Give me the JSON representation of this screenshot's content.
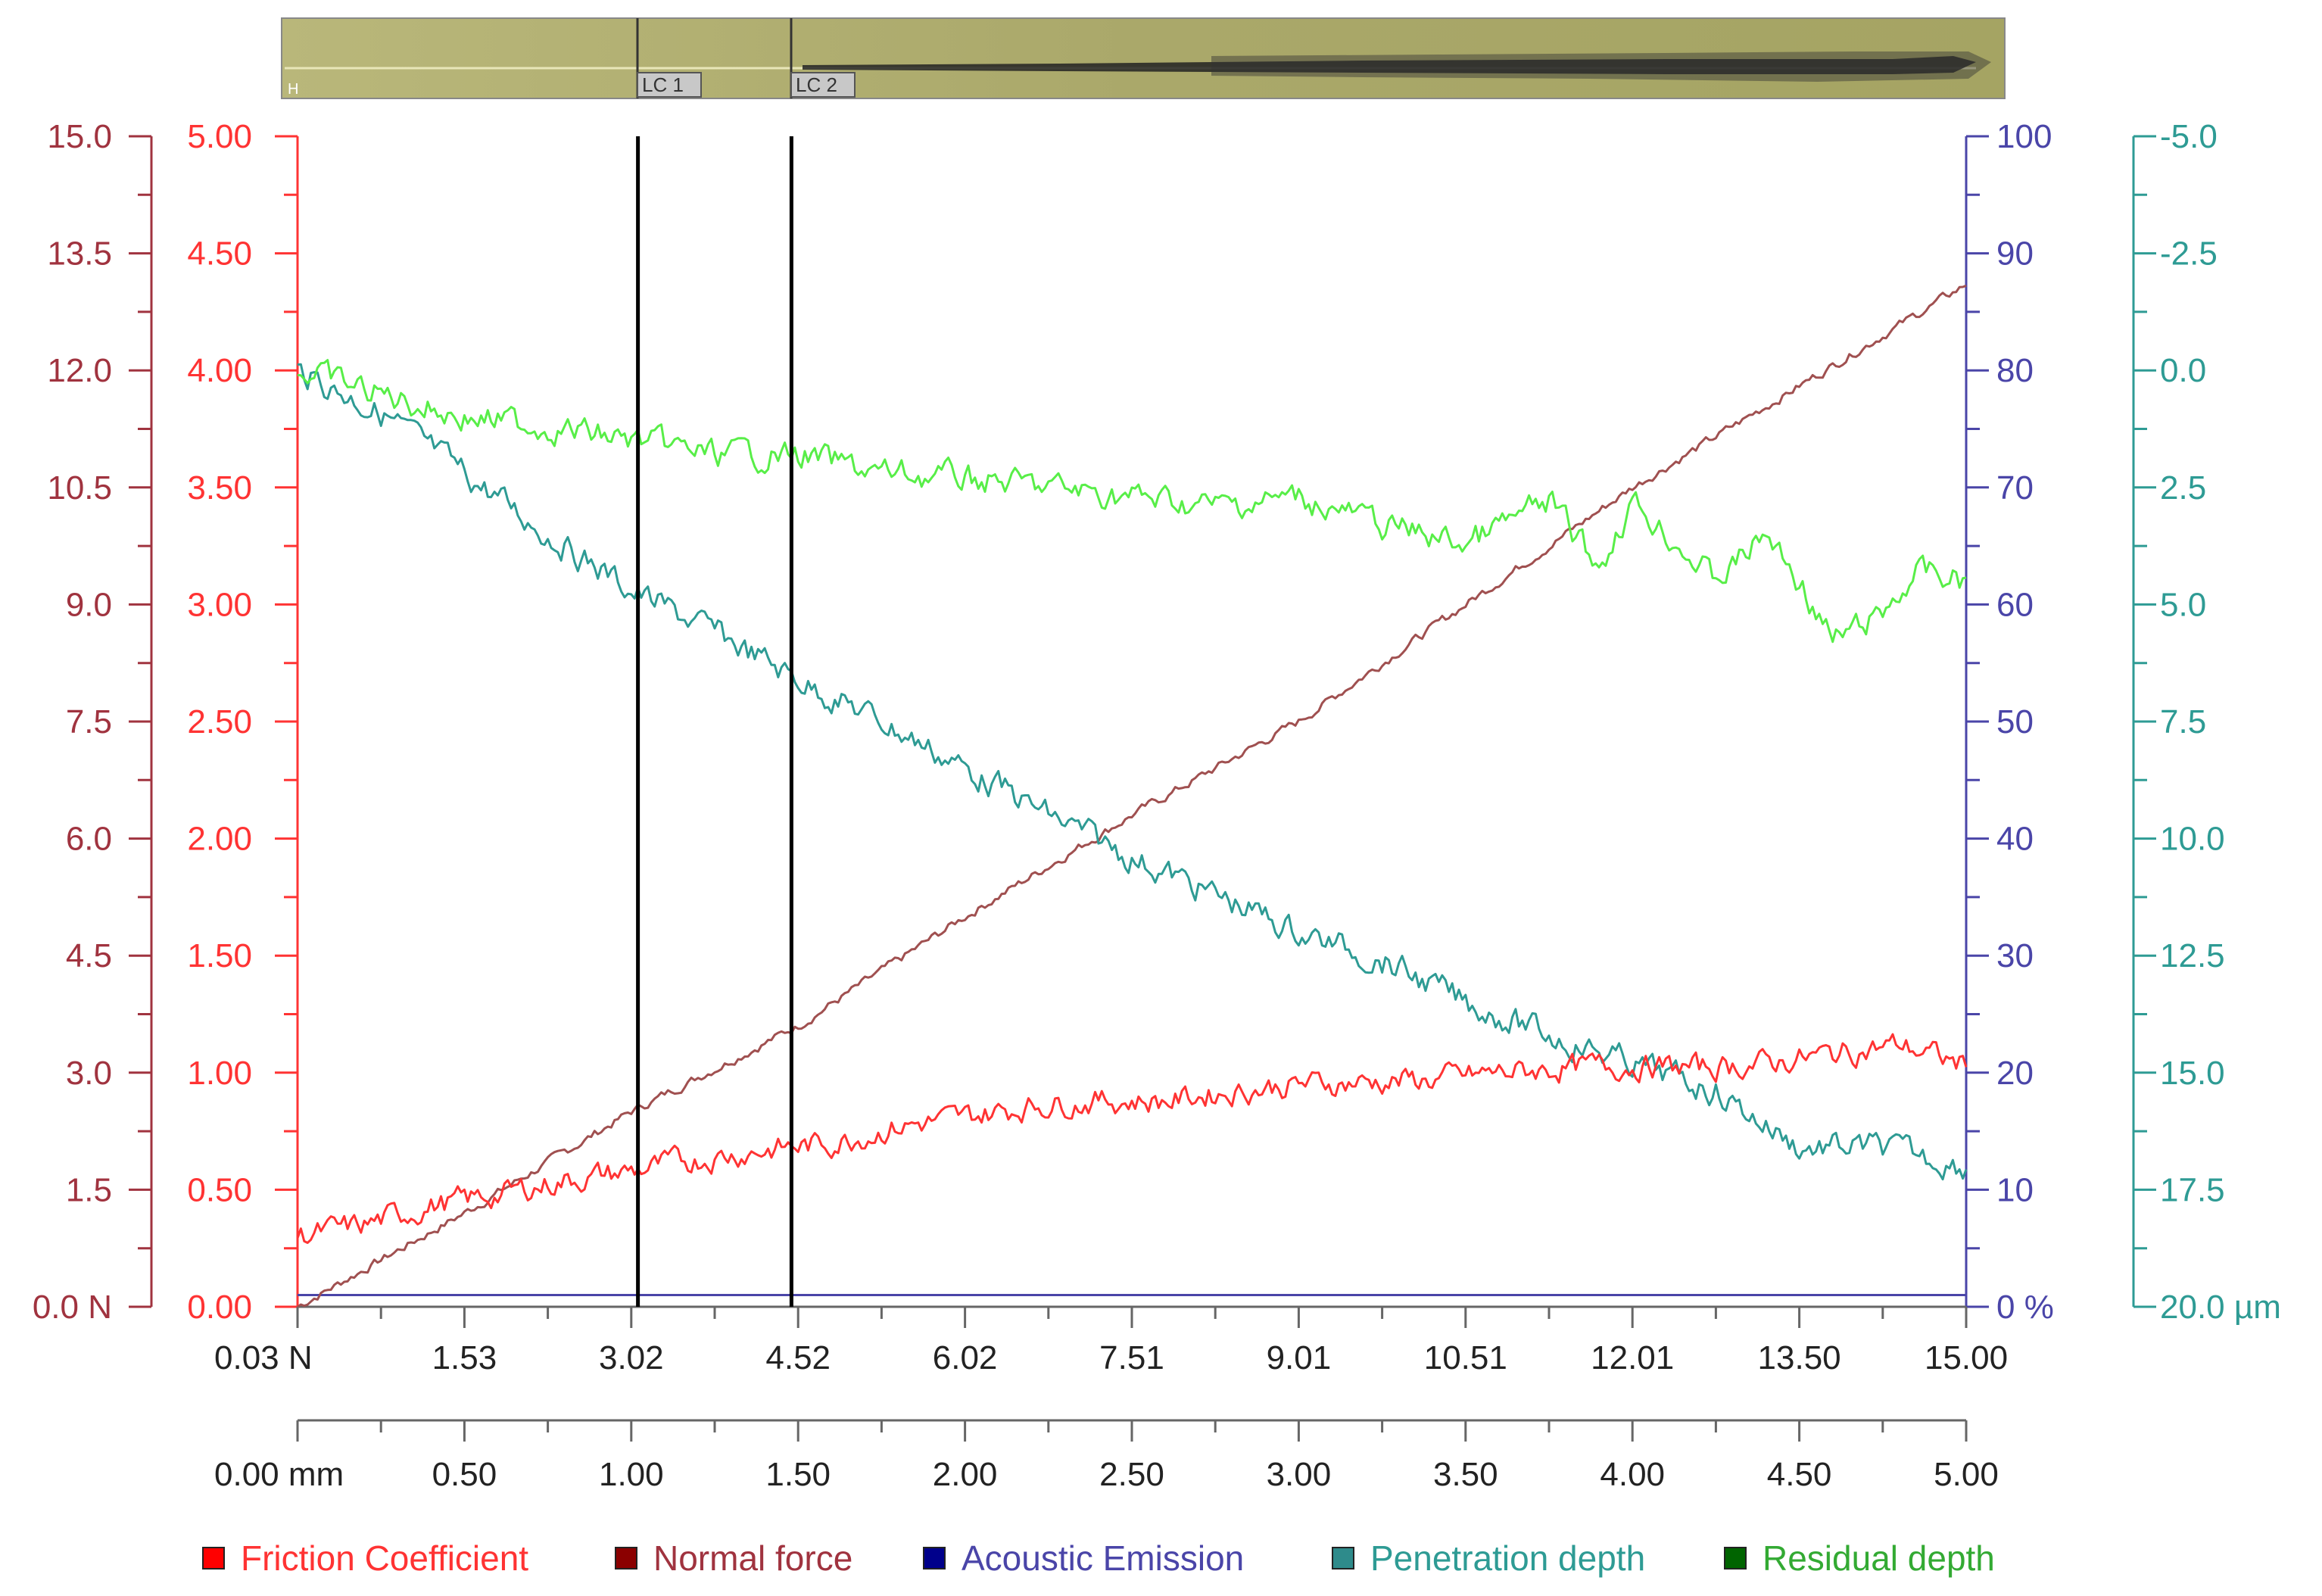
{
  "chart_data": {
    "type": "line",
    "title": "",
    "scratch_image": {
      "markers": [
        "LC 1",
        "LC 2"
      ],
      "scale_marker": "H"
    },
    "x_axis_force": {
      "ticks": [
        "0.03 N",
        "1.53",
        "3.02",
        "4.52",
        "6.02",
        "7.51",
        "9.01",
        "10.51",
        "12.01",
        "13.50",
        "15.00"
      ],
      "range": [
        0.03,
        15.0
      ]
    },
    "x_axis_position": {
      "ticks": [
        "0.00 mm",
        "0.50",
        "1.00",
        "1.50",
        "2.00",
        "2.50",
        "3.00",
        "3.50",
        "4.00",
        "4.50",
        "5.00"
      ],
      "range": [
        0.0,
        5.0
      ]
    },
    "y_axes": {
      "normal_force": {
        "ticks": [
          "0.0 N",
          "1.5",
          "3.0",
          "4.5",
          "6.0",
          "7.5",
          "9.0",
          "10.5",
          "12.0",
          "13.5",
          "15.0"
        ],
        "range": [
          0,
          15
        ],
        "color": "#a0333f"
      },
      "friction": {
        "ticks": [
          "0.00",
          "0.50",
          "1.00",
          "1.50",
          "2.00",
          "2.50",
          "3.00",
          "3.50",
          "4.00",
          "4.50",
          "5.00"
        ],
        "range": [
          0,
          5
        ],
        "color": "#ff3333"
      },
      "acoustic": {
        "ticks": [
          "0 %",
          "10",
          "20",
          "30",
          "40",
          "50",
          "60",
          "70",
          "80",
          "90",
          "100"
        ],
        "range": [
          0,
          100
        ],
        "color": "#4a45a8"
      },
      "depth": {
        "ticks": [
          "-5.0",
          "-2.5",
          "0.0",
          "2.5",
          "5.0",
          "7.5",
          "10.0",
          "12.5",
          "15.0",
          "17.5",
          "20.0 µm"
        ],
        "range": [
          -5,
          20
        ],
        "inverted": true,
        "color": "#2e9b94"
      }
    },
    "critical_loads": [
      {
        "label": "LC 1",
        "position_mm": 1.02
      },
      {
        "label": "LC 2",
        "position_mm": 1.48
      }
    ],
    "series": [
      {
        "name": "Friction Coefficient",
        "axis": "friction",
        "color": "#ff3333",
        "x_mm": [
          0.0,
          0.2,
          0.4,
          0.6,
          0.8,
          1.0,
          1.2,
          1.4,
          1.6,
          1.8,
          2.0,
          2.2,
          2.4,
          2.6,
          2.8,
          3.0,
          3.2,
          3.4,
          3.6,
          3.8,
          4.0,
          4.2,
          4.4,
          4.6,
          4.8,
          5.0
        ],
        "y": [
          0.3,
          0.35,
          0.43,
          0.48,
          0.54,
          0.58,
          0.63,
          0.67,
          0.7,
          0.77,
          0.81,
          0.86,
          0.88,
          0.88,
          0.92,
          0.95,
          0.96,
          0.97,
          1.0,
          1.02,
          1.03,
          1.02,
          1.04,
          1.08,
          1.12,
          1.03
        ]
      },
      {
        "name": "Normal force",
        "axis": "normal_force",
        "color": "#a05050",
        "x_mm": [
          0.0,
          0.5,
          1.0,
          1.5,
          2.0,
          2.5,
          3.0,
          3.5,
          4.0,
          4.5,
          5.0
        ],
        "y": [
          0.0,
          1.2,
          2.5,
          3.6,
          5.0,
          6.3,
          7.5,
          9.0,
          10.5,
          11.8,
          13.1
        ]
      },
      {
        "name": "Acoustic Emission",
        "axis": "acoustic",
        "color": "#4a45a8",
        "x_mm": [
          0.0,
          5.0
        ],
        "y": [
          1,
          1
        ]
      },
      {
        "name": "Penetration depth",
        "axis": "depth",
        "color": "#2e9b94",
        "x_mm": [
          0.0,
          0.25,
          0.5,
          0.75,
          1.0,
          1.25,
          1.5,
          1.75,
          2.0,
          2.25,
          2.5,
          2.75,
          3.0,
          3.25,
          3.5,
          3.75,
          4.0,
          4.25,
          4.5,
          4.75,
          5.0
        ],
        "y": [
          0.0,
          0.9,
          2.2,
          3.5,
          4.7,
          5.6,
          6.6,
          7.5,
          8.5,
          9.5,
          10.4,
          11.2,
          12.0,
          12.6,
          13.5,
          14.2,
          14.8,
          15.4,
          16.6,
          16.6,
          17.0
        ]
      },
      {
        "name": "Residual depth",
        "axis": "depth",
        "color": "#58ee48",
        "x_mm": [
          0.0,
          0.25,
          0.5,
          0.75,
          1.0,
          1.25,
          1.5,
          1.75,
          2.0,
          2.25,
          2.5,
          2.75,
          3.0,
          3.25,
          3.5,
          3.75,
          3.9,
          4.0,
          4.15,
          4.25,
          4.4,
          4.5,
          4.6,
          4.75,
          4.85,
          5.0
        ],
        "y": [
          0.0,
          0.5,
          1.0,
          1.2,
          1.5,
          1.8,
          1.8,
          2.2,
          2.3,
          2.5,
          2.7,
          2.9,
          2.7,
          3.3,
          3.7,
          2.8,
          4.2,
          2.8,
          3.8,
          4.5,
          3.5,
          4.5,
          5.8,
          5.2,
          4.3,
          4.5
        ]
      }
    ],
    "legend": {
      "position": "bottom",
      "items": [
        {
          "label": "Friction Coefficient",
          "color": "#ff0000",
          "text_color": "#ff3333"
        },
        {
          "label": "Normal force",
          "color": "#8b0000",
          "text_color": "#a0333f"
        },
        {
          "label": "Acoustic Emission",
          "color": "#00008b",
          "text_color": "#4a45a8"
        },
        {
          "label": "Penetration depth",
          "color": "#2e8b8b",
          "text_color": "#2e9b94"
        },
        {
          "label": "Residual depth",
          "color": "#006400",
          "text_color": "#33aa33"
        }
      ]
    }
  }
}
